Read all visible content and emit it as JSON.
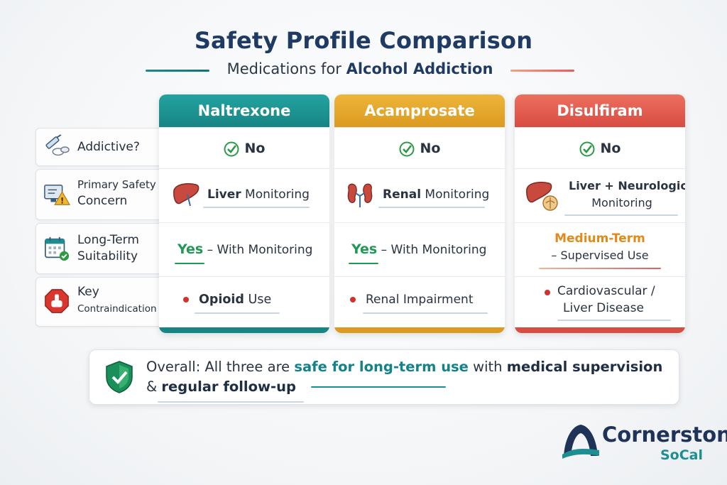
{
  "header": {
    "title": "Safety Profile Comparison",
    "subtitle_prefix": "Medications for ",
    "subtitle_bold": "Alcohol Addiction"
  },
  "row_labels": [
    {
      "line1": "Addictive?",
      "line2": "",
      "icon": "pill-syringe-icon"
    },
    {
      "line1": "Primary Safety",
      "line2": "Concern",
      "icon": "warning-monitor-icon"
    },
    {
      "line1": "Long-Term",
      "line2": "Suitability",
      "icon": "calendar-check-icon"
    },
    {
      "line1": "Key",
      "line2": "Contraindication",
      "icon": "stop-sign-icon"
    }
  ],
  "columns": [
    {
      "name": "Naltrexone",
      "color": "#1b8f8f",
      "addictive": "No",
      "safety_bold": "Liver",
      "safety_rest": " Monitoring",
      "safety_icon": "liver-icon",
      "suitability_bold": "Yes",
      "suitability_rest": " – With Monitoring",
      "contra_bold": "Opioid",
      "contra_rest": " Use"
    },
    {
      "name": "Acamprosate",
      "color": "#e3a52a",
      "addictive": "No",
      "safety_bold": "Renal",
      "safety_rest": " Monitoring",
      "safety_icon": "kidney-icon",
      "suitability_bold": "Yes",
      "suitability_rest": " – With Monitoring",
      "contra_bold": "",
      "contra_rest": "Renal Impairment"
    },
    {
      "name": "Disulfiram",
      "color": "#e15a4e",
      "addictive": "No",
      "safety_line1": "Liver + Neurological",
      "safety_line2": "Monitoring",
      "safety_icon": "liver-brain-icon",
      "suitability_line1": "Medium-Term",
      "suitability_line2": "– Supervised Use",
      "contra_line1": "Cardiovascular /",
      "contra_line2": "Liver Disease"
    }
  ],
  "overall": {
    "prefix": "Overall: All three are ",
    "highlight": "safe for long-term use",
    "mid": " with ",
    "bold1": "medical supervision",
    "line2_prefix": "& ",
    "bold2": "regular follow-up"
  },
  "logo": {
    "name": "Cornerstone",
    "sub": "SoCal"
  },
  "colors": {
    "title": "#1f3b63",
    "teal": "#1b8f8f",
    "gold": "#e3a52a",
    "red": "#e15a4e",
    "check_green": "#2f9a45",
    "medium_orange": "#e08a1a"
  }
}
